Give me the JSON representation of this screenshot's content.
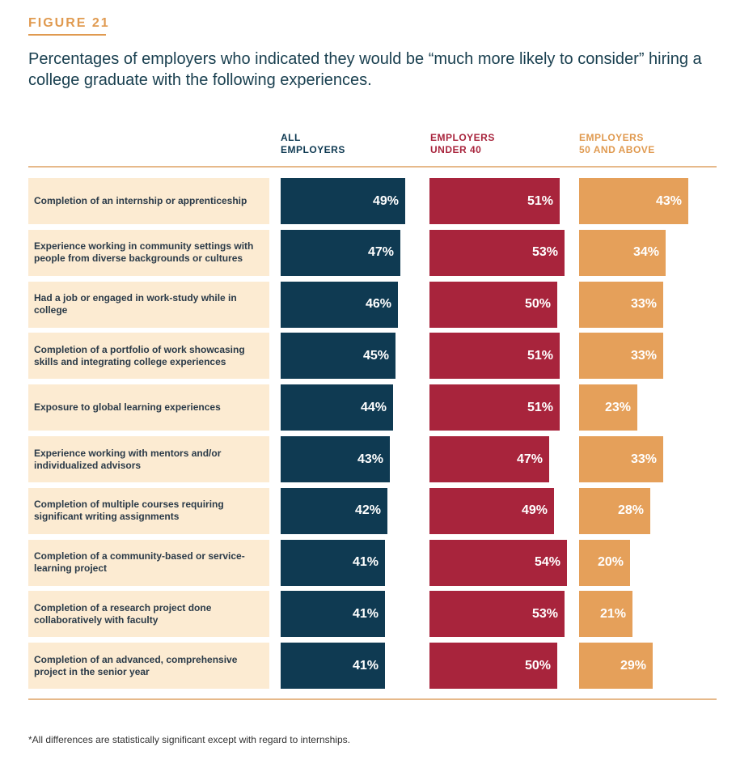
{
  "figure_label": "FIGURE 21",
  "title": "Percentages of employers who indicated they would be “much more likely to consider” hiring a college graduate with the following experiences.",
  "columns": {
    "all": [
      "ALL",
      "EMPLOYERS"
    ],
    "under40": [
      "EMPLOYERS",
      "UNDER 40"
    ],
    "fifty_plus": [
      "EMPLOYERS",
      "50 AND ABOVE"
    ]
  },
  "colors": {
    "all": "#0f3a52",
    "under40": "#a8243c",
    "fifty_plus": "#e5a05a",
    "label_bg": "#fcebd2"
  },
  "footnote": "*All differences are statistically significant except with regard to internships.",
  "chart_data": {
    "type": "bar",
    "orientation": "horizontal",
    "categories": [
      "Completion of an internship or apprenticeship",
      "Experience working in community settings with people from diverse backgrounds or cultures",
      "Had a job or engaged in work-study while in college",
      "Completion of a portfolio of work showcasing skills and integrating college experiences",
      "Exposure to global learning experiences",
      "Experience working with mentors and/or individualized advisors",
      "Completion of multiple courses requiring significant writing assignments",
      "Completion of a community-based or service-learning project",
      "Completion of a research project done collaboratively with faculty",
      "Completion of an advanced, comprehensive project in the senior year"
    ],
    "series": [
      {
        "name": "ALL EMPLOYERS",
        "values": [
          49,
          47,
          46,
          45,
          44,
          43,
          42,
          41,
          41,
          41
        ]
      },
      {
        "name": "EMPLOYERS UNDER 40",
        "values": [
          51,
          53,
          50,
          51,
          51,
          47,
          49,
          54,
          53,
          50
        ]
      },
      {
        "name": "EMPLOYERS 50 AND ABOVE",
        "values": [
          43,
          34,
          33,
          33,
          23,
          33,
          28,
          20,
          21,
          29
        ]
      }
    ],
    "value_suffix": "%",
    "title": "Percentages of employers who indicated they would be “much more likely to consider” hiring a college graduate with the following experiences.",
    "xlabel": "",
    "ylabel": "",
    "grid": false,
    "legend": "column headers above bars"
  }
}
